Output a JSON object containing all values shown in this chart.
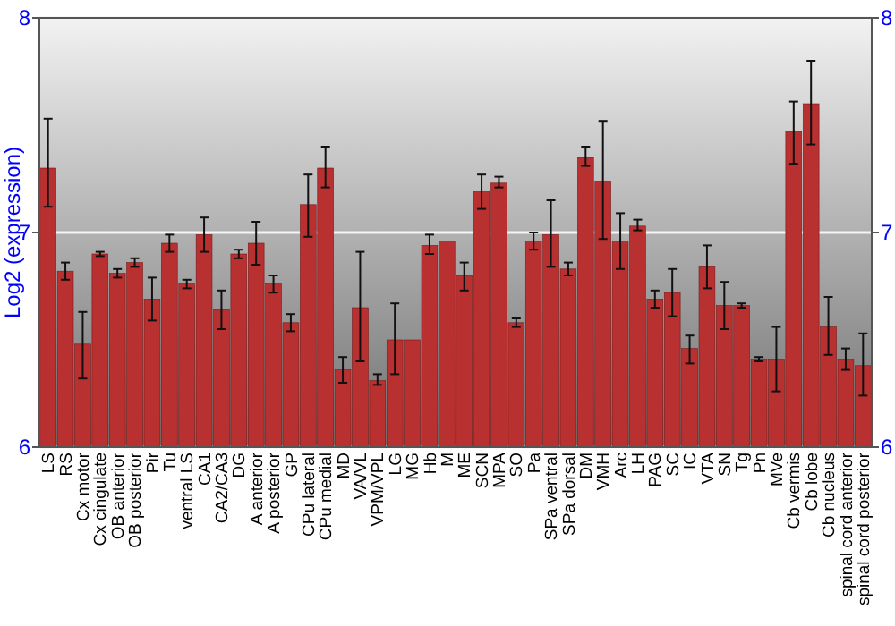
{
  "chart_data": {
    "type": "bar",
    "ylabel": "Log2 (expression)",
    "categories": [
      "LS",
      "RS",
      "Cx motor",
      "Cx cingulate",
      "OB anterior",
      "OB posterior",
      "Pir",
      "Tu",
      "ventral LS",
      "CA1",
      "CA2/CA3",
      "DG",
      "A anterior",
      "A posterior",
      "GP",
      "CPu lateral",
      "CPu medial",
      "MD",
      "VA/VL",
      "VPM/VPL",
      "LG",
      "MG",
      "Hb",
      "M",
      "ME",
      "SCN",
      "MPA",
      "SO",
      "Pa",
      "SPa ventral",
      "SPa dorsal",
      "DM",
      "VMH",
      "Arc",
      "LH",
      "PAG",
      "SC",
      "IC",
      "VTA",
      "SN",
      "Tg",
      "Pn",
      "MVe",
      "Cb vermis",
      "Cb lobe",
      "Cb nucleus",
      "spinal cord anterior",
      "spinal cord posterior"
    ],
    "values": [
      7.3,
      6.82,
      6.48,
      6.9,
      6.81,
      6.86,
      6.69,
      6.95,
      6.76,
      6.99,
      6.64,
      6.9,
      6.95,
      6.76,
      6.58,
      7.13,
      7.3,
      6.36,
      6.65,
      6.31,
      6.5,
      6.5,
      6.94,
      6.96,
      6.8,
      7.19,
      7.23,
      6.58,
      6.96,
      6.99,
      6.83,
      7.35,
      7.24,
      6.96,
      7.03,
      6.69,
      6.72,
      6.46,
      6.84,
      6.66,
      6.66,
      6.41,
      6.41,
      7.47,
      7.6,
      6.56,
      6.41,
      6.38
    ],
    "errors": [
      [
        7.12,
        7.53
      ],
      [
        6.78,
        6.86
      ],
      [
        6.32,
        6.63
      ],
      [
        6.89,
        6.91
      ],
      [
        6.79,
        6.83
      ],
      [
        6.84,
        6.88
      ],
      [
        6.59,
        6.79
      ],
      [
        6.91,
        6.99
      ],
      [
        6.74,
        6.78
      ],
      [
        6.91,
        7.07
      ],
      [
        6.55,
        6.73
      ],
      [
        6.88,
        6.92
      ],
      [
        6.85,
        7.05
      ],
      [
        6.72,
        6.8
      ],
      [
        6.54,
        6.62
      ],
      [
        6.98,
        7.27
      ],
      [
        7.21,
        7.4
      ],
      [
        6.3,
        6.42
      ],
      [
        6.4,
        6.91
      ],
      [
        6.29,
        6.34
      ],
      [
        6.34,
        6.67
      ],
      null,
      [
        6.9,
        6.99
      ],
      null,
      [
        6.73,
        6.86
      ],
      [
        7.11,
        7.27
      ],
      [
        7.21,
        7.26
      ],
      [
        6.56,
        6.6
      ],
      [
        6.92,
        7.0
      ],
      [
        6.84,
        7.15
      ],
      [
        6.8,
        6.86
      ],
      [
        7.31,
        7.4
      ],
      [
        6.97,
        7.52
      ],
      [
        6.83,
        7.09
      ],
      [
        7.01,
        7.06
      ],
      [
        6.65,
        6.73
      ],
      [
        6.61,
        6.83
      ],
      [
        6.39,
        6.52
      ],
      [
        6.74,
        6.94
      ],
      [
        6.55,
        6.77
      ],
      [
        6.65,
        6.67
      ],
      [
        6.4,
        6.42
      ],
      [
        6.26,
        6.56
      ],
      [
        7.32,
        7.61
      ],
      [
        7.41,
        7.8
      ],
      [
        6.43,
        6.7
      ],
      [
        6.36,
        6.46
      ],
      [
        6.24,
        6.53
      ]
    ],
    "color": "#b83030",
    "ylim": [
      6,
      8
    ],
    "yticks": [
      6,
      7,
      8
    ],
    "y2lim": [
      6,
      8
    ],
    "y2ticks": [
      6,
      7,
      8
    ],
    "grid": "y"
  }
}
